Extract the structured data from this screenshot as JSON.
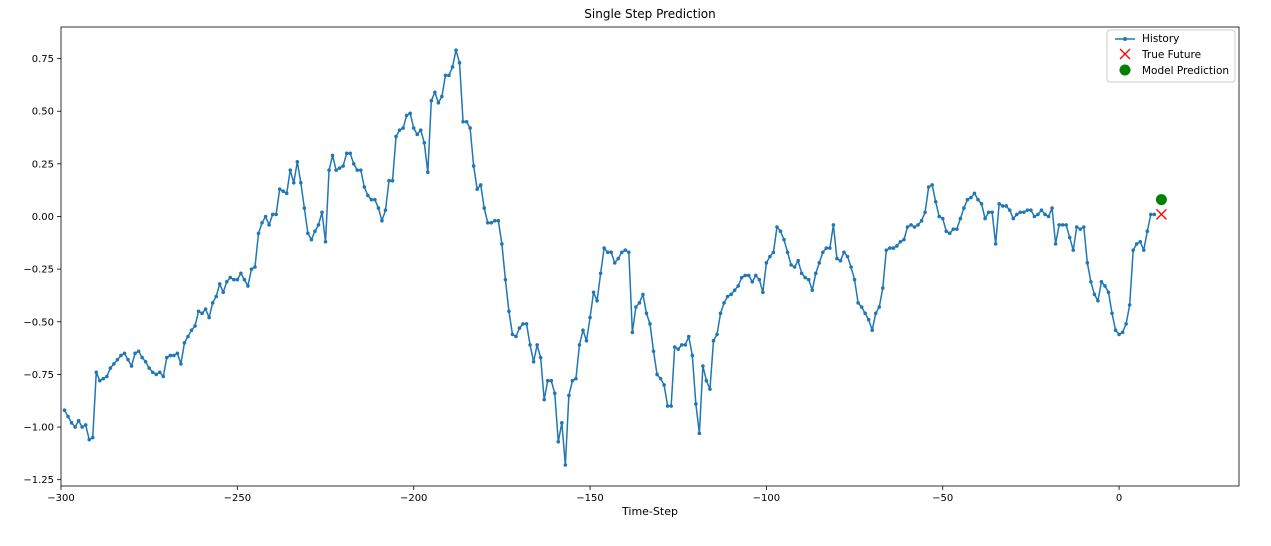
{
  "chart_data": {
    "type": "line",
    "title": "Single Step Prediction",
    "xlabel": "Time-Step",
    "ylabel": "",
    "xlim": [
      -300,
      34
    ],
    "ylim": [
      -1.28,
      0.9
    ],
    "xticks": [
      -300,
      -250,
      -200,
      -150,
      -100,
      -50,
      0
    ],
    "xtick_labels": [
      "−300",
      "−250",
      "−200",
      "−150",
      "−100",
      "−50",
      "0"
    ],
    "yticks": [
      -1.25,
      -1.0,
      -0.75,
      -0.5,
      -0.25,
      0.0,
      0.25,
      0.5,
      0.75
    ],
    "ytick_labels": [
      "−1.25",
      "−1.00",
      "−0.75",
      "−0.50",
      "−0.25",
      "0.00",
      "0.25",
      "0.50",
      "0.75"
    ],
    "grid": false,
    "legend_position": "top-right",
    "legend": [
      "History",
      "True Future",
      "Model Prediction"
    ],
    "colors": {
      "history": "#1f77b4",
      "true_future": "#ff0000",
      "prediction": "#008000"
    },
    "series": [
      {
        "name": "History",
        "style": "line-dot",
        "x_start": -299,
        "x_step": 1,
        "values": [
          -0.92,
          -0.95,
          -0.98,
          -1.0,
          -0.97,
          -1.0,
          -0.99,
          -1.06,
          -1.05,
          -0.74,
          -0.78,
          -0.77,
          -0.76,
          -0.72,
          -0.7,
          -0.68,
          -0.66,
          -0.65,
          -0.68,
          -0.71,
          -0.65,
          -0.64,
          -0.67,
          -0.69,
          -0.72,
          -0.74,
          -0.75,
          -0.74,
          -0.76,
          -0.67,
          -0.66,
          -0.66,
          -0.65,
          -0.7,
          -0.6,
          -0.57,
          -0.54,
          -0.52,
          -0.45,
          -0.46,
          -0.44,
          -0.48,
          -0.41,
          -0.38,
          -0.32,
          -0.36,
          -0.31,
          -0.29,
          -0.3,
          -0.3,
          -0.27,
          -0.3,
          -0.33,
          -0.25,
          -0.24,
          -0.08,
          -0.03,
          0.0,
          -0.04,
          0.01,
          0.01,
          0.13,
          0.12,
          0.11,
          0.22,
          0.16,
          0.26,
          0.16,
          0.04,
          -0.08,
          -0.11,
          -0.07,
          -0.04,
          0.02,
          -0.12,
          0.22,
          0.29,
          0.22,
          0.23,
          0.24,
          0.3,
          0.3,
          0.25,
          0.22,
          0.22,
          0.14,
          0.1,
          0.08,
          0.08,
          0.04,
          -0.02,
          0.03,
          0.17,
          0.17,
          0.38,
          0.41,
          0.42,
          0.48,
          0.49,
          0.42,
          0.39,
          0.41,
          0.35,
          0.21,
          0.55,
          0.59,
          0.54,
          0.57,
          0.67,
          0.67,
          0.71,
          0.79,
          0.73,
          0.45,
          0.45,
          0.42,
          0.24,
          0.13,
          0.15,
          0.04,
          -0.03,
          -0.03,
          -0.02,
          -0.02,
          -0.13,
          -0.3,
          -0.45,
          -0.56,
          -0.57,
          -0.53,
          -0.51,
          -0.51,
          -0.61,
          -0.69,
          -0.61,
          -0.67,
          -0.87,
          -0.78,
          -0.78,
          -0.84,
          -1.07,
          -0.98,
          -1.18,
          -0.85,
          -0.78,
          -0.77,
          -0.61,
          -0.54,
          -0.59,
          -0.48,
          -0.36,
          -0.4,
          -0.27,
          -0.15,
          -0.17,
          -0.17,
          -0.22,
          -0.2,
          -0.17,
          -0.16,
          -0.17,
          -0.55,
          -0.43,
          -0.41,
          -0.37,
          -0.46,
          -0.51,
          -0.64,
          -0.75,
          -0.77,
          -0.8,
          -0.9,
          -0.9,
          -0.62,
          -0.63,
          -0.61,
          -0.61,
          -0.57,
          -0.66,
          -0.89,
          -1.03,
          -0.71,
          -0.78,
          -0.82,
          -0.59,
          -0.56,
          -0.46,
          -0.41,
          -0.38,
          -0.37,
          -0.35,
          -0.33,
          -0.29,
          -0.28,
          -0.28,
          -0.31,
          -0.28,
          -0.3,
          -0.36,
          -0.22,
          -0.19,
          -0.17,
          -0.05,
          -0.07,
          -0.11,
          -0.17,
          -0.23,
          -0.24,
          -0.21,
          -0.27,
          -0.29,
          -0.3,
          -0.35,
          -0.27,
          -0.22,
          -0.17,
          -0.15,
          -0.15,
          -0.04,
          -0.2,
          -0.21,
          -0.17,
          -0.19,
          -0.24,
          -0.3,
          -0.41,
          -0.43,
          -0.46,
          -0.49,
          -0.54,
          -0.46,
          -0.43,
          -0.34,
          -0.16,
          -0.15,
          -0.15,
          -0.14,
          -0.12,
          -0.11,
          -0.05,
          -0.04,
          -0.05,
          -0.04,
          -0.02,
          0.02,
          0.14,
          0.15,
          0.07,
          0.0,
          -0.01,
          -0.07,
          -0.08,
          -0.06,
          -0.06,
          -0.01,
          0.04,
          0.08,
          0.09,
          0.11,
          0.08,
          0.06,
          -0.01,
          0.02,
          0.02,
          -0.13,
          0.06,
          0.05,
          0.05,
          0.03,
          -0.01,
          0.01,
          0.02,
          0.02,
          0.03,
          0.03,
          0.0,
          0.01,
          0.03,
          0.01,
          0.0,
          0.04,
          -0.13,
          -0.04,
          -0.04,
          -0.04,
          -0.1,
          -0.16,
          -0.05,
          -0.06,
          -0.05,
          -0.22,
          -0.31,
          -0.37,
          -0.4,
          -0.31,
          -0.33,
          -0.36,
          -0.46,
          -0.54,
          -0.56,
          -0.55,
          -0.51,
          -0.42,
          -0.16,
          -0.13,
          -0.12,
          -0.16,
          -0.07,
          0.01,
          0.01
        ]
      },
      {
        "name": "True Future",
        "style": "x-marker",
        "points": [
          {
            "x": 12,
            "y": 0.01
          }
        ]
      },
      {
        "name": "Model Prediction",
        "style": "circle-marker",
        "points": [
          {
            "x": 12,
            "y": 0.08
          }
        ]
      }
    ]
  }
}
